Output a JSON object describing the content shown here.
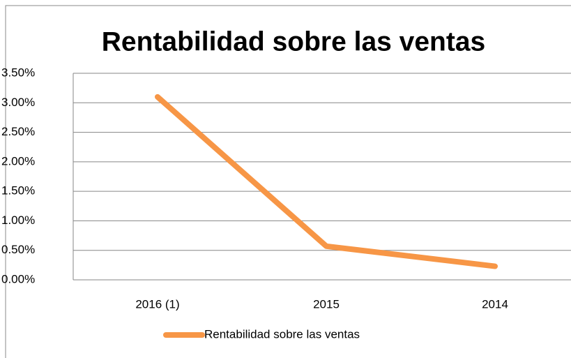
{
  "chart_data": {
    "type": "line",
    "title": "Rentabilidad sobre las ventas",
    "categories": [
      "2016 (1)",
      "2015",
      "2014"
    ],
    "series": [
      {
        "name": "Rentabilidad sobre las ventas",
        "color": "#f79646",
        "values": [
          3.1,
          0.57,
          0.23
        ]
      }
    ],
    "ylim": [
      0,
      3.5
    ],
    "yticks": [
      {
        "value": 0,
        "label": "0.00%"
      },
      {
        "value": 0.5,
        "label": "0.50%"
      },
      {
        "value": 1,
        "label": "1.00%"
      },
      {
        "value": 1.5,
        "label": "1.50%"
      },
      {
        "value": 2,
        "label": "2.00%"
      },
      {
        "value": 2.5,
        "label": "2.50%"
      },
      {
        "value": 3,
        "label": "3.00%"
      },
      {
        "value": 3.5,
        "label": "3.50%"
      }
    ],
    "grid": true,
    "legend": "bottom"
  }
}
